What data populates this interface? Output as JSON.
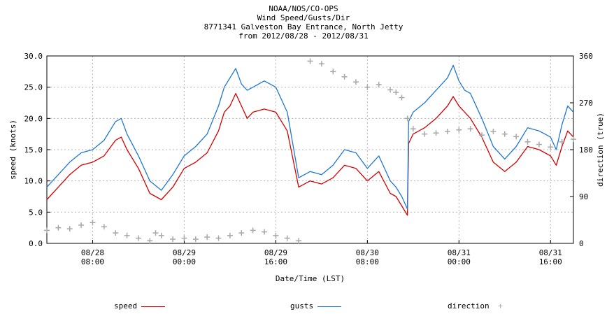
{
  "chart_data": {
    "type": "line",
    "title_lines": [
      "NOAA/NOS/CO-OPS",
      "Wind Speed/Gusts/Dir",
      "8771341 Galveston Bay Entrance, North Jetty",
      "from 2012/08/28 - 2012/08/31"
    ],
    "xlabel": "Date/Time (LST)",
    "ylabel_left": "speed (knots)",
    "ylabel_right": "direction (true)",
    "ylim_left": [
      0,
      30
    ],
    "ylim_right": [
      0,
      360
    ],
    "y_ticks_left": [
      "0.0",
      "5.0",
      "10.0",
      "15.0",
      "20.0",
      "25.0",
      "30.0"
    ],
    "y_ticks_right": [
      "0",
      "90",
      "180",
      "270",
      "360"
    ],
    "x_range_hours": [
      0,
      92
    ],
    "x_ticks": [
      {
        "hours": 8,
        "date": "08/28",
        "time": "08:00"
      },
      {
        "hours": 24,
        "date": "08/29",
        "time": "00:00"
      },
      {
        "hours": 40,
        "date": "08/29",
        "time": "16:00"
      },
      {
        "hours": 56,
        "date": "08/30",
        "time": "08:00"
      },
      {
        "hours": 72,
        "date": "08/31",
        "time": "00:00"
      },
      {
        "hours": 88,
        "date": "08/31",
        "time": "16:00"
      }
    ],
    "grid": true,
    "legend_position": "bottom",
    "series": [
      {
        "name": "speed",
        "color": "#d40000",
        "marker": "line",
        "axis": "left",
        "x": [
          0,
          2,
          4,
          6,
          8,
          10,
          12,
          13,
          14,
          16,
          18,
          20,
          22,
          24,
          26,
          28,
          30,
          31,
          32,
          33,
          34,
          35,
          36,
          38,
          40,
          42,
          44,
          46,
          48,
          50,
          52,
          54,
          56,
          58,
          60,
          61,
          62,
          63,
          63.2,
          64,
          66,
          68,
          70,
          71,
          72,
          73,
          74,
          76,
          78,
          80,
          82,
          84,
          86,
          88,
          89,
          90,
          91,
          92
        ],
        "y": [
          7,
          9,
          11,
          12.5,
          13,
          14,
          16.5,
          17,
          15,
          12,
          8,
          7,
          9,
          12,
          13,
          14.5,
          18,
          21,
          22,
          24,
          22,
          20,
          21,
          21.5,
          21,
          18,
          9,
          10,
          9.5,
          10.5,
          12.5,
          12,
          10,
          11.5,
          8,
          7.5,
          6,
          4.5,
          16,
          17.5,
          18.5,
          20,
          22,
          23.5,
          22,
          21,
          20,
          17,
          13,
          11.5,
          13,
          15.5,
          15,
          14,
          12.5,
          15.5,
          18,
          17
        ]
      },
      {
        "name": "gusts",
        "color": "#1f77d4",
        "marker": "line",
        "axis": "left",
        "x": [
          0,
          2,
          4,
          6,
          8,
          10,
          12,
          13,
          14,
          16,
          18,
          20,
          22,
          24,
          26,
          28,
          30,
          31,
          32,
          33,
          34,
          35,
          36,
          38,
          40,
          42,
          44,
          46,
          48,
          50,
          52,
          54,
          56,
          58,
          60,
          61,
          62,
          63,
          63.2,
          64,
          66,
          68,
          70,
          71,
          72,
          73,
          74,
          76,
          78,
          80,
          82,
          84,
          86,
          88,
          89,
          90,
          91,
          92
        ],
        "y": [
          9,
          11,
          13,
          14.5,
          15,
          16.5,
          19.5,
          20,
          17.5,
          14,
          10,
          8.5,
          11,
          14,
          15.5,
          17.5,
          22,
          25,
          26.5,
          28,
          25.5,
          24.5,
          25,
          26,
          25,
          21,
          10.5,
          11.5,
          11,
          12.5,
          15,
          14.5,
          12,
          14,
          10,
          9,
          7.5,
          5.5,
          19.5,
          21,
          22.5,
          24.5,
          26.5,
          28.5,
          26,
          24.5,
          24,
          20,
          15.5,
          13.5,
          15.5,
          18.5,
          18,
          17,
          15,
          19,
          22,
          21
        ]
      },
      {
        "name": "direction",
        "color": "#a8a8a8",
        "marker": "+",
        "axis": "right",
        "x": [
          0,
          2,
          4,
          6,
          8,
          10,
          12,
          14,
          16,
          18,
          19,
          20,
          22,
          24,
          26,
          28,
          30,
          32,
          34,
          36,
          38,
          40,
          42,
          44,
          46,
          48,
          50,
          52,
          54,
          56,
          58,
          60,
          61,
          62,
          63,
          64,
          66,
          68,
          70,
          72,
          74,
          76,
          78,
          80,
          82,
          84,
          86,
          88,
          90,
          92
        ],
        "y": [
          25,
          30,
          28,
          35,
          40,
          32,
          20,
          15,
          10,
          5,
          20,
          15,
          8,
          10,
          8,
          12,
          10,
          15,
          20,
          25,
          22,
          15,
          10,
          5,
          350,
          345,
          330,
          320,
          310,
          300,
          305,
          295,
          290,
          280,
          240,
          220,
          210,
          212,
          215,
          218,
          220,
          208,
          215,
          210,
          205,
          195,
          190,
          185,
          195,
          200
        ]
      }
    ]
  }
}
